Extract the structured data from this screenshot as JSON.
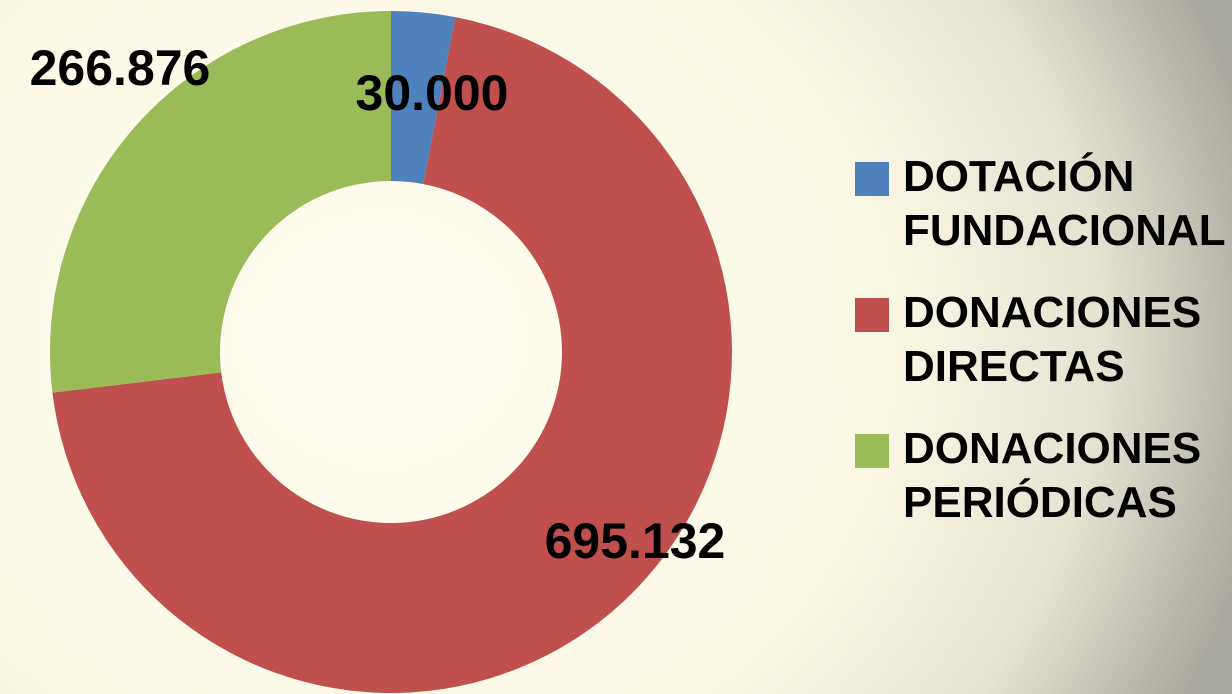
{
  "chart_data": {
    "type": "donut",
    "categories": [
      "DOTACIÓN FUNDACIONAL",
      "DONACIONES DIRECTAS",
      "DONACIONES PERIÓDICAS"
    ],
    "values": [
      30000,
      695132,
      266876
    ],
    "value_labels": [
      "30.000",
      "695.132",
      "266.876"
    ],
    "colors": [
      "#4f81bd",
      "#c0504d",
      "#9bbb59"
    ],
    "legend": "right"
  }
}
